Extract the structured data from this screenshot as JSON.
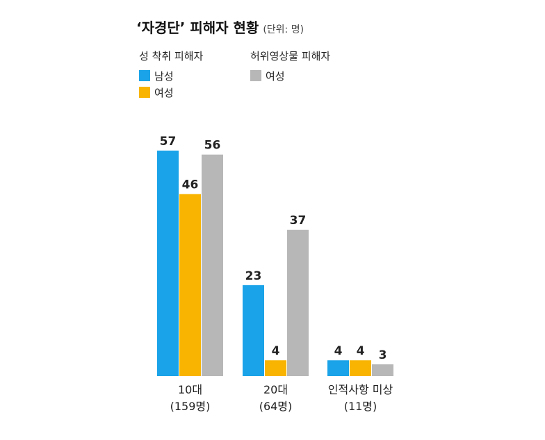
{
  "title": "‘자경단’ 피해자 현황",
  "unit": "(단위: 명)",
  "legend_groups": [
    {
      "title": "성 착취 피해자",
      "items": [
        {
          "label": "남성",
          "color": "#1aa3e8"
        },
        {
          "label": "여성",
          "color": "#f8b400"
        }
      ]
    },
    {
      "title": "허위영상물 피해자",
      "items": [
        {
          "label": "여성",
          "color": "#b7b7b7"
        }
      ]
    }
  ],
  "chart_data": {
    "type": "bar",
    "categories": [
      "10대",
      "20대",
      "인적사항 미상"
    ],
    "category_totals": [
      "(159명)",
      "(64명)",
      "(11명)"
    ],
    "series": [
      {
        "name": "성 착취 피해자 남성",
        "color": "#1aa3e8",
        "values": [
          57,
          23,
          4
        ]
      },
      {
        "name": "성 착취 피해자 여성",
        "color": "#f8b400",
        "values": [
          46,
          4,
          4
        ]
      },
      {
        "name": "허위영상물 피해자 여성",
        "color": "#b7b7b7",
        "values": [
          56,
          37,
          3
        ]
      }
    ],
    "ylim": [
      0,
      57
    ],
    "grid": false
  }
}
